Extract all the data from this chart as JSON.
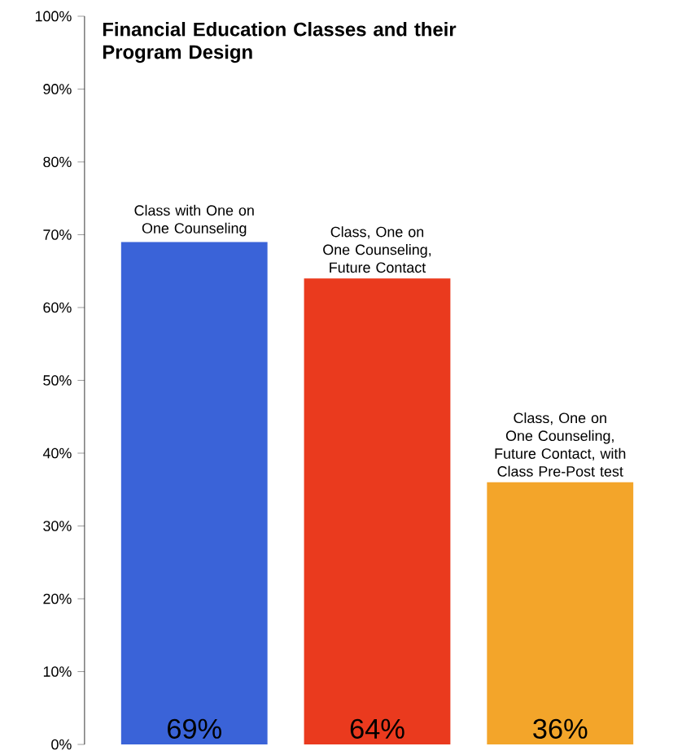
{
  "chart_data": {
    "type": "bar",
    "title": "Financial Education Classes and their Program Design",
    "categories": [
      "Class with One on One Counseling",
      "Class, One on One Counseling, Future Contact",
      "Class, One on One Counseling, Future Contact, with Class Pre-Post test"
    ],
    "values": [
      69,
      64,
      36
    ],
    "value_labels": [
      "69%",
      "64%",
      "36%"
    ],
    "colors": [
      "#3a63d8",
      "#ea3a1e",
      "#f3a52a"
    ],
    "ylim": [
      0,
      100
    ],
    "yticks": [
      {
        "value": 0,
        "label": "0%"
      },
      {
        "value": 10,
        "label": "10%"
      },
      {
        "value": 20,
        "label": "20%"
      },
      {
        "value": 30,
        "label": "30%"
      },
      {
        "value": 40,
        "label": "40%"
      },
      {
        "value": 50,
        "label": "50%"
      },
      {
        "value": 60,
        "label": "60%"
      },
      {
        "value": 70,
        "label": "70%"
      },
      {
        "value": 80,
        "label": "80%"
      },
      {
        "value": 90,
        "label": "90%"
      },
      {
        "value": 100,
        "label": "100%"
      }
    ]
  }
}
